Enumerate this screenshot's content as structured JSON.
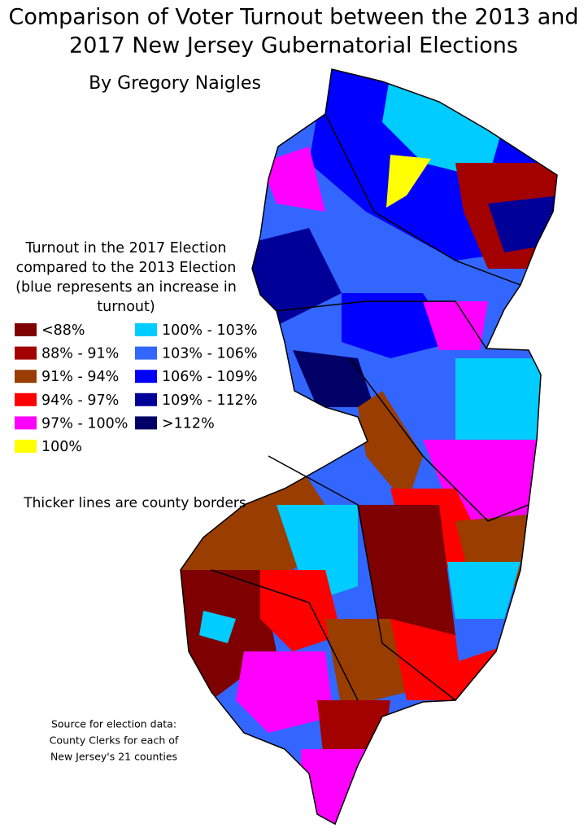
{
  "header": {
    "title_lines": [
      "Comparison of Voter Turnout between the 2013 and",
      "2017 New Jersey Gubernatorial Elections"
    ],
    "subtitle": "By Gregory Naigles"
  },
  "legend": {
    "title_lines": [
      "Turnout in the 2017 Election",
      "compared to the 2013 Election",
      "(blue represents an increase in",
      "turnout)"
    ],
    "items": [
      {
        "label": "<88%",
        "color": "#7f0000"
      },
      {
        "label": "88% - 91%",
        "color": "#a30000"
      },
      {
        "label": "91% - 94%",
        "color": "#993d00"
      },
      {
        "label": "94% - 97%",
        "color": "#ff0000"
      },
      {
        "label": "97% - 100%",
        "color": "#ff00ff"
      },
      {
        "label": "100%",
        "color": "#ffff00"
      },
      {
        "label": "100% - 103%",
        "color": "#00ccff"
      },
      {
        "label": "103% - 106%",
        "color": "#3366ff"
      },
      {
        "label": "106% - 109%",
        "color": "#0000ff"
      },
      {
        "label": "109% - 112%",
        "color": "#000099"
      },
      {
        "label": ">112%",
        "color": "#000066"
      }
    ]
  },
  "note": "Thicker lines are county borders",
  "source_lines": [
    "Source for election data:",
    "County Clerks for each of",
    "New Jersey's 21 counties"
  ]
}
